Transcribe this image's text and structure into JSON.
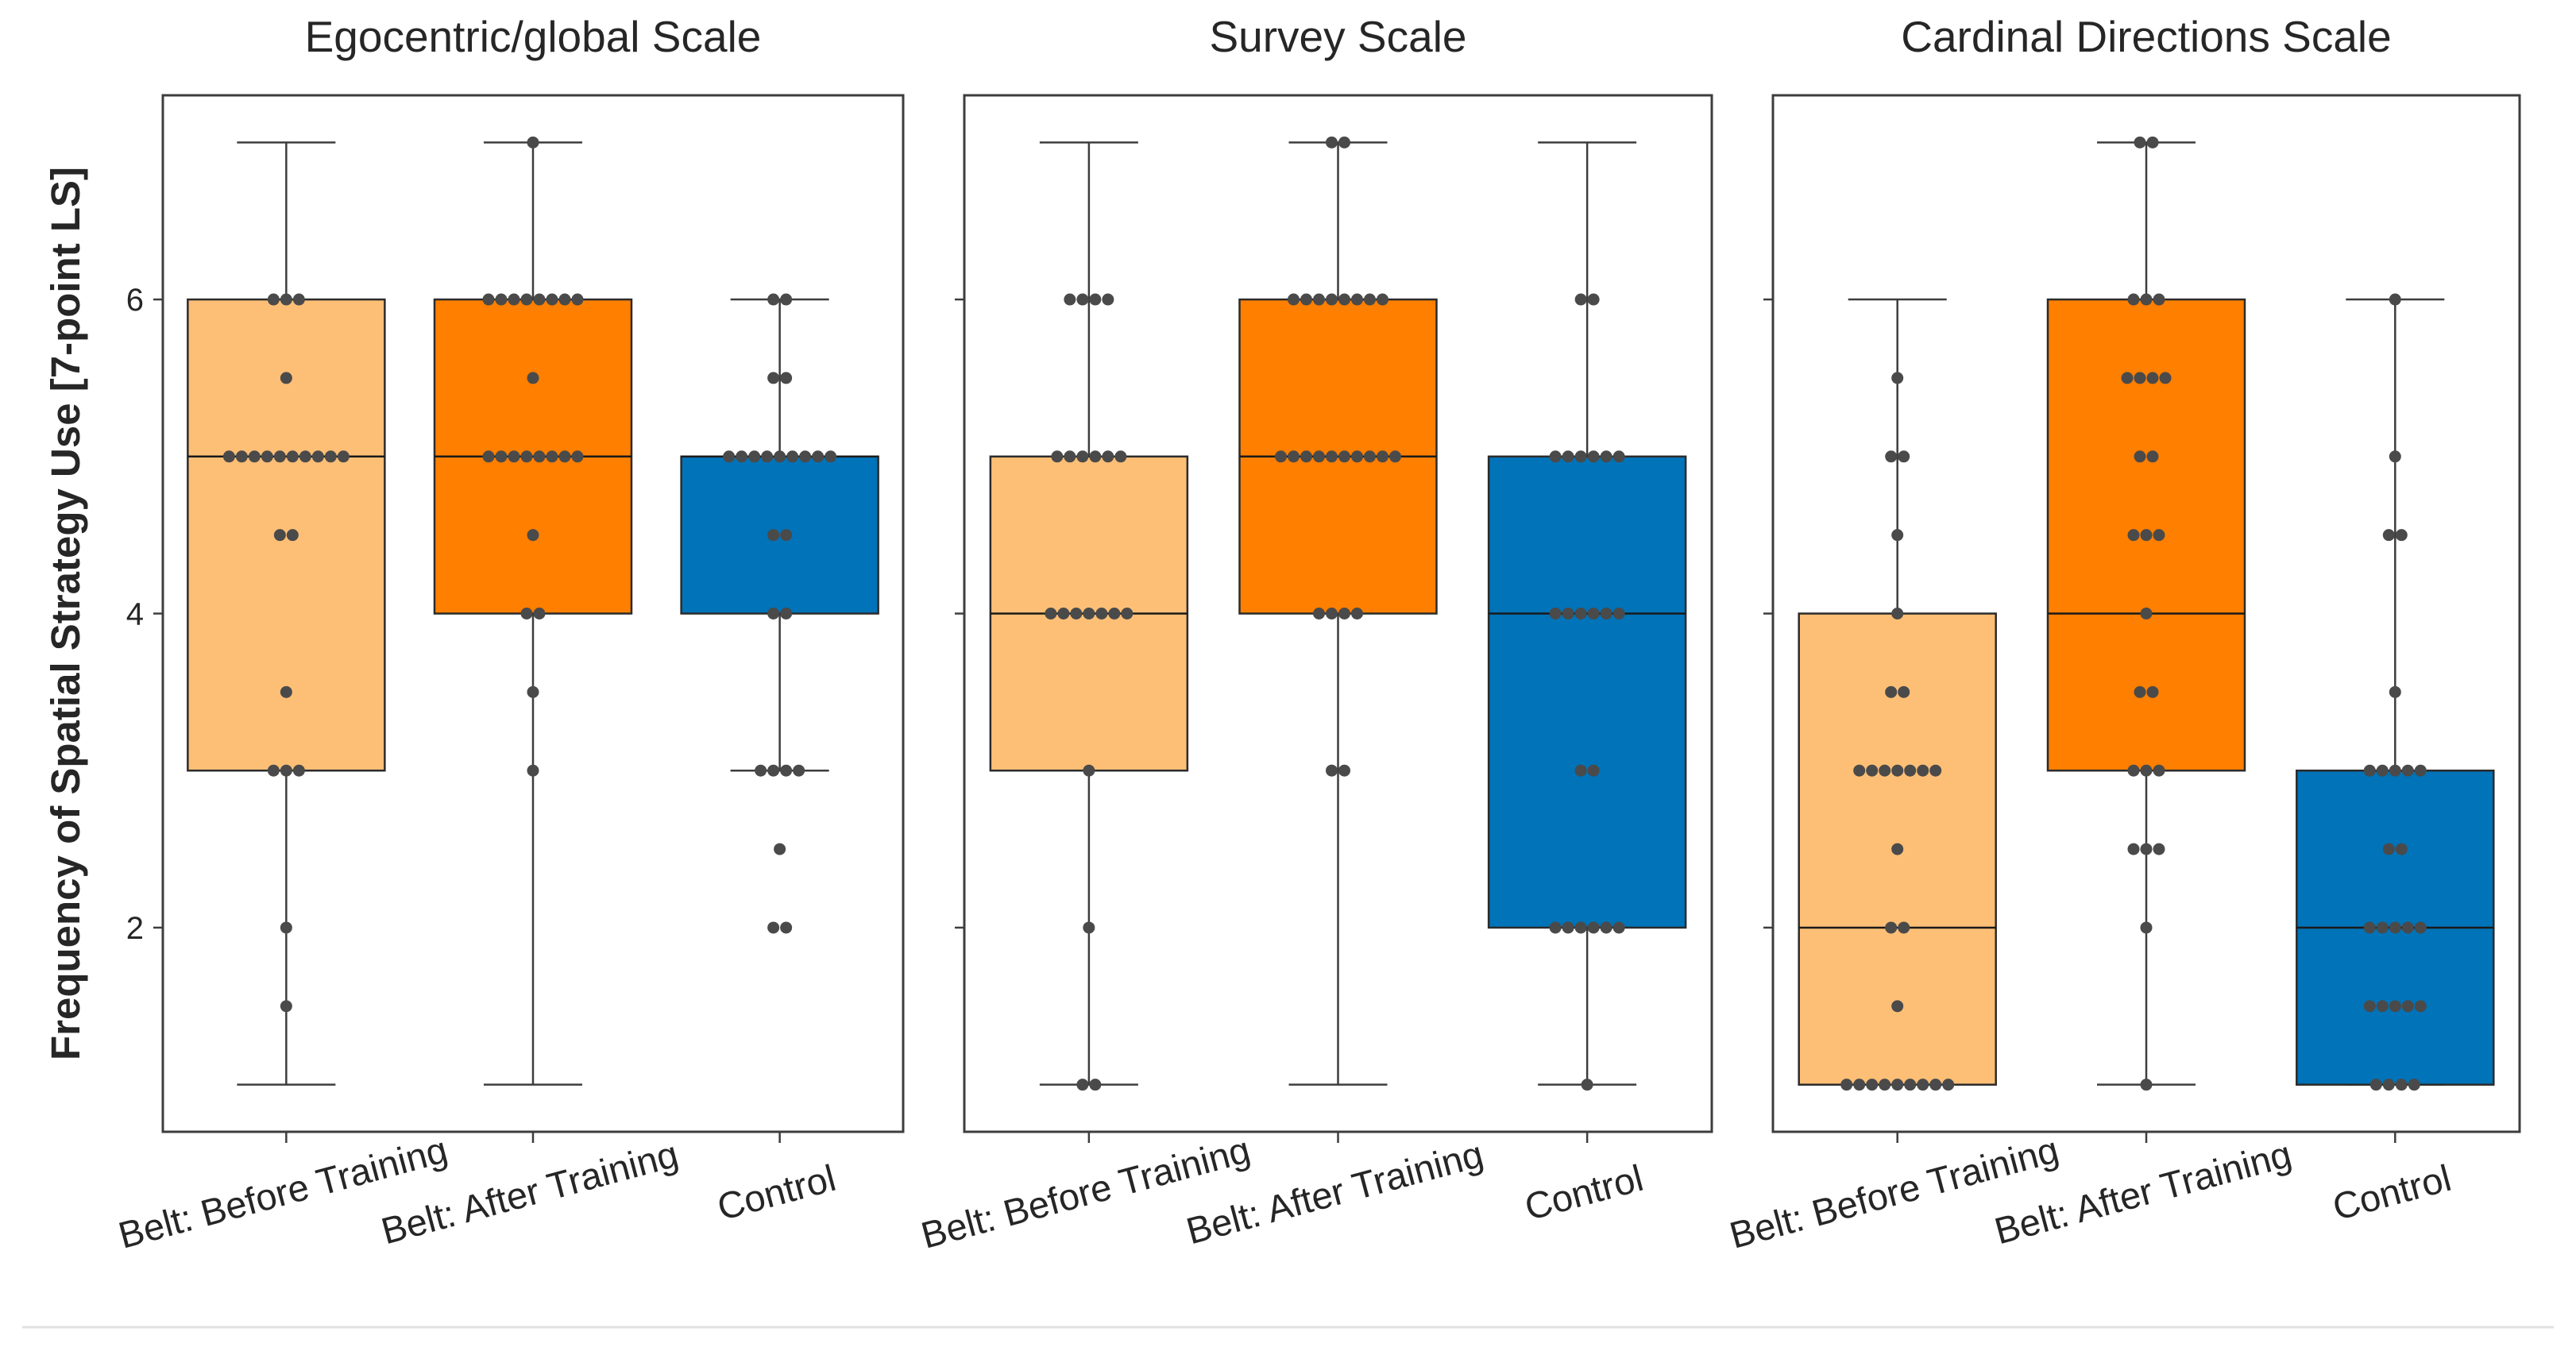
{
  "chart_data": {
    "type": "box",
    "ylabel": "Frequency of Spatial Strategy Use [7-point LS]",
    "ylim": [
      0.7,
      7.3
    ],
    "yticks": [
      2,
      4,
      6
    ],
    "categories": [
      "Belt: Before Training",
      "Belt: After Training",
      "Control"
    ],
    "colors": {
      "Belt: Before Training": "#fdbf76",
      "Belt: After Training": "#ff7f00",
      "Control": "#0173b8"
    },
    "point_color": "#4a4a4a",
    "panels": [
      {
        "title": "Egocentric/global Scale",
        "boxes": [
          {
            "category": "Belt: Before Training",
            "whisker_low": 1,
            "q1": 3,
            "median": 5,
            "q3": 6,
            "whisker_high": 7,
            "points": [
              6,
              6,
              6,
              5.5,
              5,
              5,
              5,
              5,
              5,
              5,
              5,
              5,
              5,
              5,
              4.5,
              4.5,
              3.5,
              3,
              3,
              3,
              2,
              1.5
            ]
          },
          {
            "category": "Belt: After Training",
            "whisker_low": 1,
            "q1": 4,
            "median": 5,
            "q3": 6,
            "whisker_high": 7,
            "points": [
              7,
              6,
              6,
              6,
              6,
              6,
              6,
              6,
              6,
              5.5,
              5,
              5,
              5,
              5,
              5,
              5,
              5,
              5,
              4.5,
              4,
              4,
              3.5,
              3
            ]
          },
          {
            "category": "Control",
            "whisker_low": 3,
            "q1": 4,
            "median": 5,
            "q3": 5,
            "whisker_high": 6,
            "points": [
              6,
              6,
              5.5,
              5.5,
              5,
              5,
              5,
              5,
              5,
              5,
              5,
              5,
              5,
              4.5,
              4.5,
              4,
              4,
              3,
              3,
              3,
              3,
              2.5,
              2,
              2
            ]
          }
        ]
      },
      {
        "title": "Survey Scale",
        "boxes": [
          {
            "category": "Belt: Before Training",
            "whisker_low": 1,
            "q1": 3,
            "median": 4,
            "q3": 5,
            "whisker_high": 7,
            "points": [
              6,
              6,
              6,
              6,
              5,
              5,
              5,
              5,
              5,
              5,
              4,
              4,
              4,
              4,
              4,
              4,
              4,
              3,
              2,
              1,
              1
            ]
          },
          {
            "category": "Belt: After Training",
            "whisker_low": 1,
            "q1": 4,
            "median": 5,
            "q3": 6,
            "whisker_high": 7,
            "points": [
              7,
              7,
              6,
              6,
              6,
              6,
              6,
              6,
              6,
              6,
              5,
              5,
              5,
              5,
              5,
              5,
              5,
              5,
              5,
              5,
              4,
              4,
              4,
              4,
              3,
              3
            ]
          },
          {
            "category": "Control",
            "whisker_low": 1,
            "q1": 2,
            "median": 4,
            "q3": 5,
            "whisker_high": 7,
            "points": [
              6,
              6,
              5,
              5,
              5,
              5,
              5,
              5,
              4,
              4,
              4,
              4,
              4,
              4,
              3,
              3,
              2,
              2,
              2,
              2,
              2,
              2,
              1
            ]
          }
        ]
      },
      {
        "title": "Cardinal Directions Scale",
        "boxes": [
          {
            "category": "Belt: Before Training",
            "whisker_low": 1,
            "q1": 1,
            "median": 2,
            "q3": 4,
            "whisker_high": 6,
            "points": [
              5.5,
              5,
              5,
              4.5,
              4,
              3.5,
              3.5,
              3,
              3,
              3,
              3,
              3,
              3,
              3,
              2.5,
              2,
              2,
              1.5,
              1,
              1,
              1,
              1,
              1,
              1,
              1,
              1,
              1
            ]
          },
          {
            "category": "Belt: After Training",
            "whisker_low": 1,
            "q1": 3,
            "median": 4,
            "q3": 6,
            "whisker_high": 7,
            "points": [
              7,
              7,
              6,
              6,
              6,
              5.5,
              5.5,
              5.5,
              5.5,
              5,
              5,
              4.5,
              4.5,
              4.5,
              4,
              3.5,
              3.5,
              3,
              3,
              3,
              2.5,
              2.5,
              2.5,
              2,
              1
            ]
          },
          {
            "category": "Control",
            "whisker_low": 1,
            "q1": 1,
            "median": 2,
            "q3": 3,
            "whisker_high": 6,
            "points": [
              6,
              5,
              4.5,
              4.5,
              3.5,
              3,
              3,
              3,
              3,
              3,
              2.5,
              2.5,
              2,
              2,
              2,
              2,
              2,
              1.5,
              1.5,
              1.5,
              1.5,
              1.5,
              1,
              1,
              1,
              1
            ]
          }
        ]
      }
    ]
  }
}
